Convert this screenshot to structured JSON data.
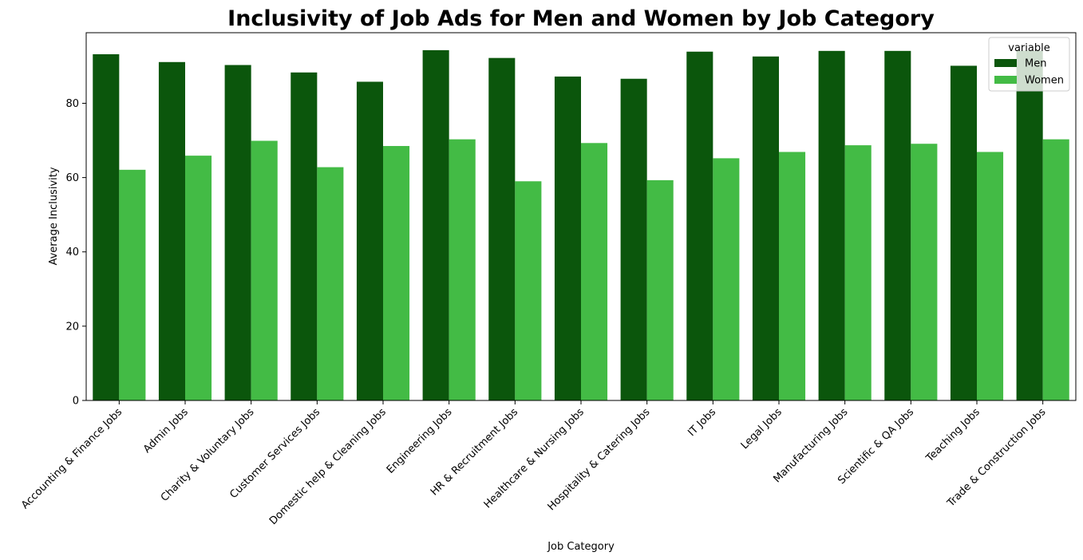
{
  "chart_data": {
    "type": "bar",
    "title": "Inclusivity of Job Ads for Men and Women by Job Category",
    "xlabel": "Job Category",
    "ylabel": "Average Inclusivity",
    "ylim": [
      0,
      99
    ],
    "yticks": [
      0,
      20,
      40,
      60,
      80
    ],
    "grid": false,
    "legend_title": "variable",
    "legend_position": "top-right",
    "categories": [
      "Accounting & Finance Jobs",
      "Admin Jobs",
      "Charity & Voluntary Jobs",
      "Customer Services Jobs",
      "Domestic help & Cleaning Jobs",
      "Engineering Jobs",
      "HR & Recruitment Jobs",
      "Healthcare & Nursing Jobs",
      "Hospitality & Catering Jobs",
      "IT Jobs",
      "Legal Jobs",
      "Manufacturing Jobs",
      "Scientific & QA Jobs",
      "Teaching Jobs",
      "Trade & Construction Jobs"
    ],
    "series": [
      {
        "name": "Men",
        "color": "#0b560c",
        "values": [
          93.2,
          91.1,
          90.3,
          88.3,
          85.8,
          94.3,
          92.2,
          87.2,
          86.6,
          93.9,
          92.6,
          94.1,
          94.1,
          90.1,
          94.2
        ]
      },
      {
        "name": "Women",
        "color": "#43bb45",
        "values": [
          62.1,
          65.9,
          69.9,
          62.8,
          68.5,
          70.3,
          59.0,
          69.3,
          59.3,
          65.2,
          66.9,
          68.7,
          69.1,
          66.9,
          70.3
        ]
      }
    ]
  }
}
